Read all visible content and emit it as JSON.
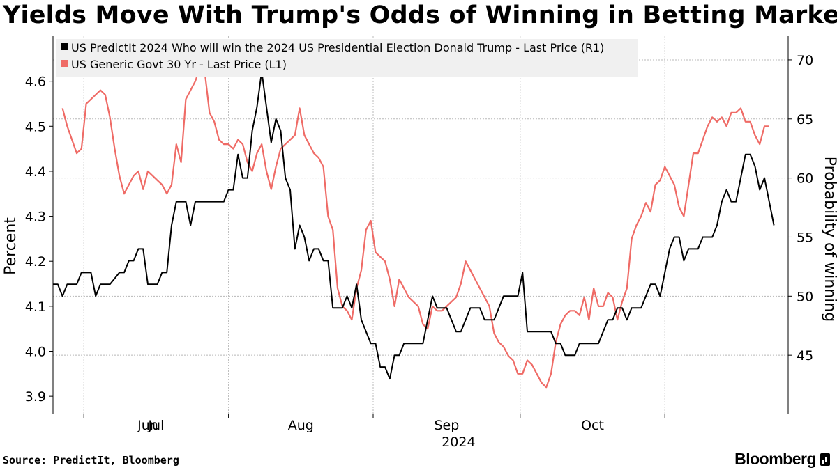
{
  "header": {
    "title": "Yields Move With Trump's Odds of Winning in Betting Market"
  },
  "footer": {
    "source": "Source: PredictIt, Bloomberg",
    "brand": "Bloomberg"
  },
  "chart_data": {
    "type": "line",
    "legend": {
      "placement": "top-left",
      "entries": [
        "US PredictIt 2024 Who will win the 2024 US Presidential Election Donald Trump - Last Price (R1)",
        "US Generic Govt 30 Yr - Last Price (L1)"
      ]
    },
    "x_axis": {
      "months": [
        "Jun",
        "Jul",
        "Aug",
        "Sep",
        "Oct"
      ],
      "year_label": "2024",
      "start": "2024-05-19",
      "end": "2024-10-30",
      "gridlines_at_days": [
        13,
        74,
        135,
        197,
        258
      ]
    },
    "left_axis": {
      "label": "Percent",
      "ylim": [
        3.86,
        4.7
      ],
      "ticks": [
        3.9,
        4.0,
        4.1,
        4.2,
        4.3,
        4.4,
        4.5,
        4.6
      ]
    },
    "right_axis": {
      "label": "Probability of winning",
      "ylim": [
        40,
        72
      ],
      "ticks": [
        45,
        50,
        55,
        60,
        65,
        70
      ]
    },
    "series": [
      {
        "name": "US PredictIt 2024 Who will win the 2024 US Presidential Election Donald Trump - Last Price (R1)",
        "axis": "right",
        "color": "#000000",
        "points": [
          [
            0,
            51
          ],
          [
            2,
            51
          ],
          [
            4,
            50
          ],
          [
            6,
            51
          ],
          [
            8,
            51
          ],
          [
            10,
            51
          ],
          [
            12,
            52
          ],
          [
            14,
            52
          ],
          [
            16,
            52
          ],
          [
            18,
            50
          ],
          [
            20,
            51
          ],
          [
            22,
            51
          ],
          [
            24,
            51
          ],
          [
            26,
            51.5
          ],
          [
            28,
            52
          ],
          [
            30,
            52
          ],
          [
            32,
            53
          ],
          [
            34,
            53
          ],
          [
            36,
            54
          ],
          [
            38,
            54
          ],
          [
            40,
            51
          ],
          [
            42,
            51
          ],
          [
            44,
            51
          ],
          [
            46,
            52
          ],
          [
            48,
            52
          ],
          [
            50,
            56
          ],
          [
            52,
            58
          ],
          [
            54,
            58
          ],
          [
            56,
            58
          ],
          [
            58,
            56
          ],
          [
            60,
            58
          ],
          [
            62,
            58
          ],
          [
            64,
            58
          ],
          [
            66,
            58
          ],
          [
            68,
            58
          ],
          [
            70,
            58
          ],
          [
            72,
            58
          ],
          [
            74,
            59
          ],
          [
            76,
            59
          ],
          [
            78,
            62
          ],
          [
            80,
            60
          ],
          [
            82,
            60
          ],
          [
            84,
            64
          ],
          [
            86,
            66
          ],
          [
            88,
            69
          ],
          [
            90,
            66
          ],
          [
            92,
            63
          ],
          [
            94,
            65
          ],
          [
            96,
            64
          ],
          [
            98,
            60
          ],
          [
            100,
            59
          ],
          [
            102,
            54
          ],
          [
            104,
            56
          ],
          [
            106,
            55
          ],
          [
            108,
            53
          ],
          [
            110,
            54
          ],
          [
            112,
            54
          ],
          [
            114,
            53
          ],
          [
            116,
            53
          ],
          [
            118,
            49
          ],
          [
            120,
            49
          ],
          [
            122,
            49
          ],
          [
            124,
            50
          ],
          [
            126,
            49
          ],
          [
            128,
            51
          ],
          [
            130,
            48
          ],
          [
            132,
            47
          ],
          [
            134,
            46
          ],
          [
            136,
            46
          ],
          [
            138,
            44
          ],
          [
            140,
            44
          ],
          [
            142,
            43
          ],
          [
            144,
            45
          ],
          [
            146,
            45
          ],
          [
            148,
            46
          ],
          [
            150,
            46
          ],
          [
            152,
            46
          ],
          [
            154,
            46
          ],
          [
            156,
            46
          ],
          [
            158,
            48
          ],
          [
            160,
            50
          ],
          [
            162,
            49
          ],
          [
            164,
            49
          ],
          [
            166,
            49
          ],
          [
            168,
            48
          ],
          [
            170,
            47
          ],
          [
            172,
            47
          ],
          [
            174,
            48
          ],
          [
            176,
            49
          ],
          [
            178,
            49
          ],
          [
            180,
            49
          ],
          [
            182,
            48
          ],
          [
            184,
            48
          ],
          [
            186,
            48
          ],
          [
            188,
            49
          ],
          [
            190,
            50
          ],
          [
            192,
            50
          ],
          [
            194,
            50
          ],
          [
            196,
            50
          ],
          [
            198,
            52
          ],
          [
            200,
            47
          ],
          [
            202,
            47
          ],
          [
            204,
            47
          ],
          [
            206,
            47
          ],
          [
            208,
            47
          ],
          [
            210,
            47
          ],
          [
            212,
            46
          ],
          [
            214,
            46
          ],
          [
            216,
            45
          ],
          [
            218,
            45
          ],
          [
            220,
            45
          ],
          [
            222,
            46
          ],
          [
            224,
            46
          ],
          [
            226,
            46
          ],
          [
            228,
            46
          ],
          [
            230,
            46
          ],
          [
            232,
            47
          ],
          [
            234,
            48
          ],
          [
            236,
            48
          ],
          [
            238,
            49
          ],
          [
            240,
            49
          ],
          [
            242,
            48
          ],
          [
            244,
            49
          ],
          [
            246,
            49
          ],
          [
            248,
            49
          ],
          [
            250,
            50
          ],
          [
            252,
            51
          ],
          [
            254,
            51
          ],
          [
            256,
            50
          ],
          [
            258,
            52
          ],
          [
            260,
            54
          ],
          [
            262,
            55
          ],
          [
            264,
            55
          ],
          [
            266,
            53
          ],
          [
            268,
            54
          ],
          [
            270,
            54
          ],
          [
            272,
            54
          ],
          [
            274,
            55
          ],
          [
            276,
            55
          ],
          [
            278,
            55
          ],
          [
            280,
            56
          ],
          [
            282,
            58
          ],
          [
            284,
            59
          ],
          [
            286,
            58
          ],
          [
            288,
            58
          ],
          [
            290,
            60
          ],
          [
            292,
            62
          ],
          [
            294,
            62
          ],
          [
            296,
            61
          ],
          [
            298,
            59
          ],
          [
            300,
            60
          ],
          [
            302,
            58
          ],
          [
            304,
            56
          ]
        ]
      },
      {
        "name": "US Generic Govt 30 Yr - Last Price (L1)",
        "axis": "left",
        "color": "#ef6b66",
        "points": [
          [
            4,
            4.54
          ],
          [
            6,
            4.5
          ],
          [
            8,
            4.47
          ],
          [
            10,
            4.44
          ],
          [
            12,
            4.45
          ],
          [
            14,
            4.55
          ],
          [
            16,
            4.56
          ],
          [
            18,
            4.57
          ],
          [
            20,
            4.58
          ],
          [
            22,
            4.57
          ],
          [
            24,
            4.52
          ],
          [
            26,
            4.45
          ],
          [
            28,
            4.39
          ],
          [
            30,
            4.35
          ],
          [
            32,
            4.37
          ],
          [
            34,
            4.39
          ],
          [
            36,
            4.4
          ],
          [
            38,
            4.36
          ],
          [
            40,
            4.4
          ],
          [
            42,
            4.39
          ],
          [
            44,
            4.38
          ],
          [
            46,
            4.37
          ],
          [
            48,
            4.35
          ],
          [
            50,
            4.37
          ],
          [
            52,
            4.46
          ],
          [
            54,
            4.42
          ],
          [
            56,
            4.56
          ],
          [
            58,
            4.58
          ],
          [
            60,
            4.6
          ],
          [
            62,
            4.63
          ],
          [
            64,
            4.62
          ],
          [
            66,
            4.53
          ],
          [
            68,
            4.51
          ],
          [
            70,
            4.47
          ],
          [
            72,
            4.46
          ],
          [
            74,
            4.46
          ],
          [
            76,
            4.45
          ],
          [
            78,
            4.47
          ],
          [
            80,
            4.46
          ],
          [
            82,
            4.42
          ],
          [
            84,
            4.4
          ],
          [
            86,
            4.44
          ],
          [
            88,
            4.46
          ],
          [
            90,
            4.4
          ],
          [
            92,
            4.36
          ],
          [
            94,
            4.41
          ],
          [
            96,
            4.45
          ],
          [
            98,
            4.46
          ],
          [
            100,
            4.47
          ],
          [
            102,
            4.48
          ],
          [
            104,
            4.54
          ],
          [
            106,
            4.48
          ],
          [
            108,
            4.46
          ],
          [
            110,
            4.44
          ],
          [
            112,
            4.43
          ],
          [
            114,
            4.41
          ],
          [
            116,
            4.3
          ],
          [
            118,
            4.27
          ],
          [
            120,
            4.14
          ],
          [
            122,
            4.1
          ],
          [
            124,
            4.09
          ],
          [
            126,
            4.07
          ],
          [
            128,
            4.14
          ],
          [
            130,
            4.18
          ],
          [
            132,
            4.27
          ],
          [
            134,
            4.29
          ],
          [
            136,
            4.22
          ],
          [
            138,
            4.21
          ],
          [
            140,
            4.2
          ],
          [
            142,
            4.16
          ],
          [
            144,
            4.1
          ],
          [
            146,
            4.16
          ],
          [
            148,
            4.14
          ],
          [
            150,
            4.12
          ],
          [
            152,
            4.11
          ],
          [
            154,
            4.1
          ],
          [
            156,
            4.06
          ],
          [
            158,
            4.05
          ],
          [
            160,
            4.1
          ],
          [
            162,
            4.09
          ],
          [
            164,
            4.09
          ],
          [
            166,
            4.1
          ],
          [
            168,
            4.11
          ],
          [
            170,
            4.12
          ],
          [
            172,
            4.15
          ],
          [
            174,
            4.2
          ],
          [
            176,
            4.18
          ],
          [
            178,
            4.16
          ],
          [
            180,
            4.14
          ],
          [
            182,
            4.12
          ],
          [
            184,
            4.1
          ],
          [
            186,
            4.04
          ],
          [
            188,
            4.02
          ],
          [
            190,
            4.01
          ],
          [
            192,
            3.99
          ],
          [
            194,
            3.98
          ],
          [
            196,
            3.95
          ],
          [
            198,
            3.95
          ],
          [
            200,
            3.98
          ],
          [
            202,
            3.97
          ],
          [
            204,
            3.95
          ],
          [
            206,
            3.93
          ],
          [
            208,
            3.92
          ],
          [
            210,
            3.95
          ],
          [
            212,
            4.02
          ],
          [
            214,
            4.06
          ],
          [
            216,
            4.08
          ],
          [
            218,
            4.09
          ],
          [
            220,
            4.09
          ],
          [
            222,
            4.08
          ],
          [
            224,
            4.12
          ],
          [
            226,
            4.07
          ],
          [
            228,
            4.14
          ],
          [
            230,
            4.1
          ],
          [
            232,
            4.1
          ],
          [
            234,
            4.13
          ],
          [
            236,
            4.12
          ],
          [
            238,
            4.07
          ],
          [
            240,
            4.11
          ],
          [
            242,
            4.14
          ],
          [
            244,
            4.25
          ],
          [
            246,
            4.28
          ],
          [
            248,
            4.3
          ],
          [
            250,
            4.33
          ],
          [
            252,
            4.31
          ],
          [
            254,
            4.37
          ],
          [
            256,
            4.38
          ],
          [
            258,
            4.41
          ],
          [
            260,
            4.39
          ],
          [
            262,
            4.37
          ],
          [
            264,
            4.32
          ],
          [
            266,
            4.3
          ],
          [
            268,
            4.37
          ],
          [
            270,
            4.44
          ],
          [
            272,
            4.44
          ],
          [
            274,
            4.47
          ],
          [
            276,
            4.5
          ],
          [
            278,
            4.52
          ],
          [
            280,
            4.51
          ],
          [
            282,
            4.52
          ],
          [
            284,
            4.5
          ],
          [
            286,
            4.53
          ],
          [
            288,
            4.53
          ],
          [
            290,
            4.54
          ],
          [
            292,
            4.51
          ],
          [
            294,
            4.51
          ],
          [
            296,
            4.48
          ],
          [
            298,
            4.46
          ],
          [
            300,
            4.5
          ],
          [
            302,
            4.5
          ]
        ]
      }
    ],
    "grid": true
  }
}
